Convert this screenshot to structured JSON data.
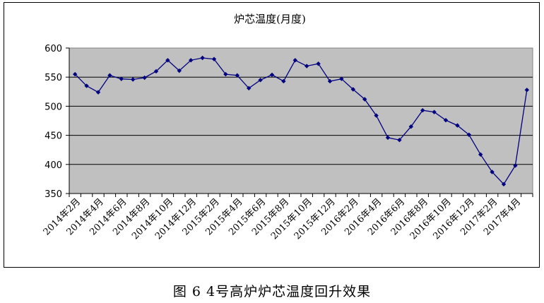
{
  "chart_data": {
    "type": "line",
    "title": "炉芯温度(月度)",
    "xlabel": "",
    "ylabel": "",
    "ylim": [
      350,
      600
    ],
    "yticks": [
      350,
      400,
      450,
      500,
      550,
      600
    ],
    "grid": true,
    "legend": "none",
    "tick_labels": [
      "2014年2月",
      "2014年4月",
      "2014年6月",
      "2014年8月",
      "2014年10月",
      "2014年12月",
      "2015年2月",
      "2015年4月",
      "2015年6月",
      "2015年8月",
      "2015年10月",
      "2015年12月",
      "2016年2月",
      "2016年4月",
      "2016年6月",
      "2016年8月",
      "2016年10月",
      "2016年12月",
      "2017年2月",
      "2017年4月"
    ],
    "series": [
      {
        "values": [
          555,
          535,
          524,
          553,
          547,
          546,
          549,
          560,
          579,
          561,
          579,
          583,
          581,
          555,
          553,
          531,
          545,
          554,
          543,
          579,
          569,
          573,
          543,
          547,
          529,
          512,
          484,
          446,
          442,
          465,
          493,
          490,
          476,
          467,
          451,
          417,
          387,
          366,
          398,
          528
        ]
      }
    ],
    "colors": {
      "line": "#000080",
      "marker": "#000080",
      "plot_bg": "#c0c0c0",
      "grid": "#000000"
    }
  },
  "caption": "图 6  4号高炉炉芯温度回升效果"
}
